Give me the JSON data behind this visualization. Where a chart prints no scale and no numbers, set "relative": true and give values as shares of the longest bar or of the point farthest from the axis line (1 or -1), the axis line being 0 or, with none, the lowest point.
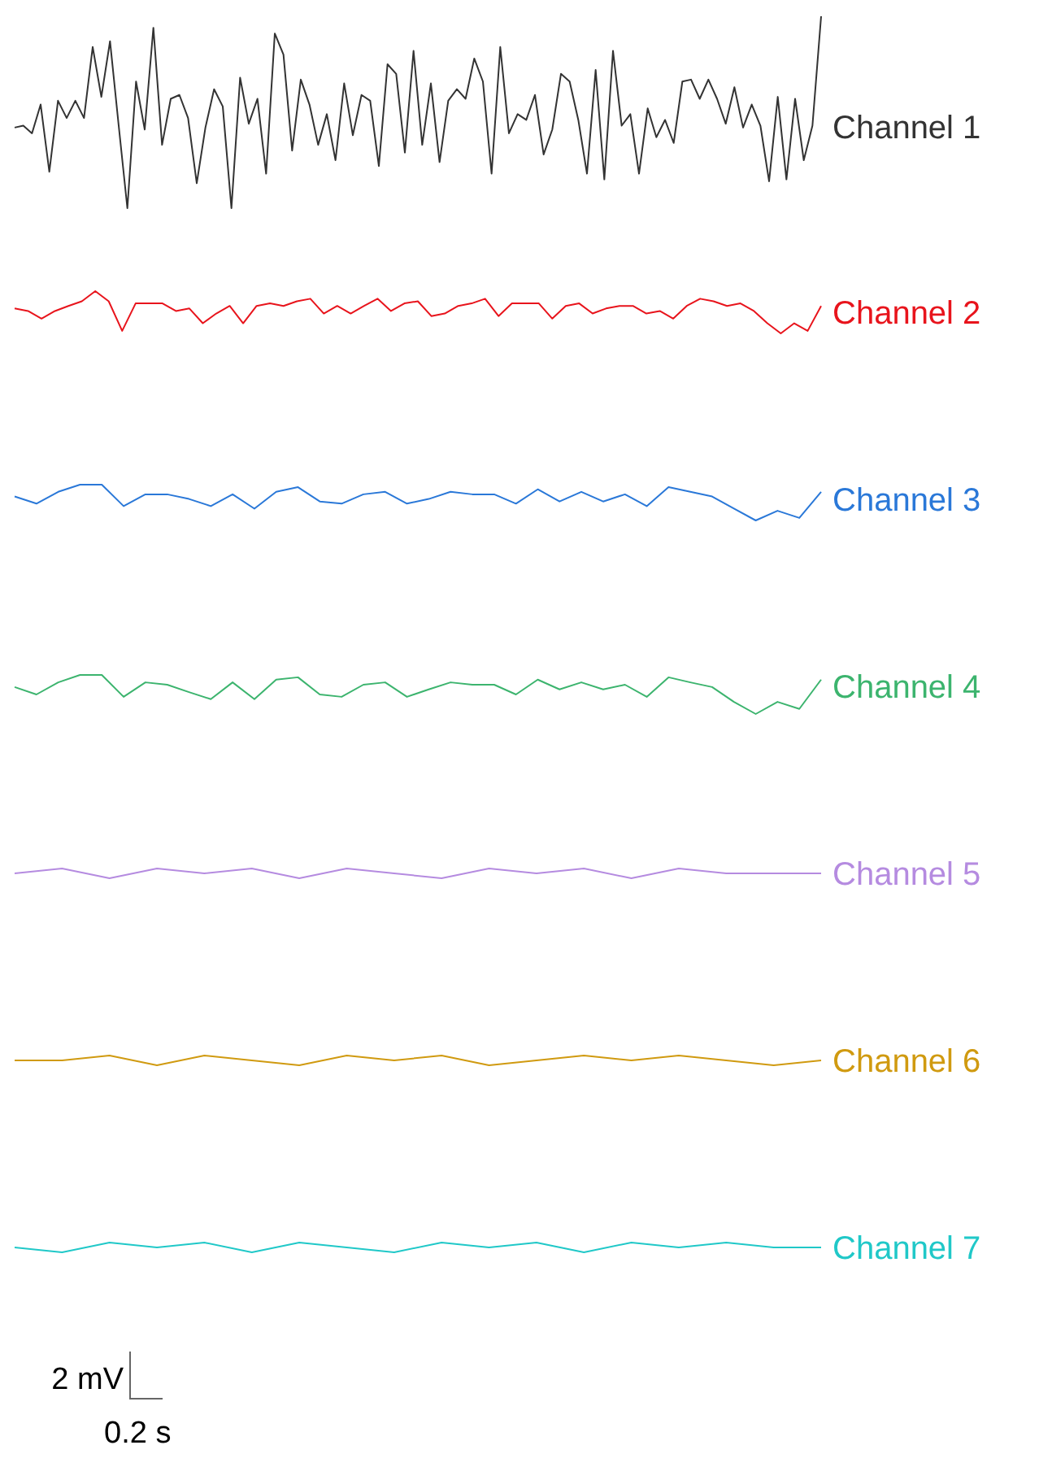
{
  "chart_data": [
    {
      "type": "line",
      "relative": true,
      "categories": [
        null,
        null,
        null,
        null,
        null,
        null,
        null,
        null,
        null,
        null,
        null,
        null,
        null,
        null,
        null,
        null,
        null,
        null,
        null,
        null,
        null,
        null,
        null,
        null,
        null,
        null,
        null,
        null,
        null,
        null,
        null,
        null,
        null,
        null,
        null,
        null,
        null,
        null,
        null,
        null,
        null,
        null,
        null,
        null,
        null,
        null,
        null,
        null,
        null,
        null,
        null,
        null,
        null,
        null,
        null,
        null,
        null,
        null,
        null,
        null,
        null,
        null,
        null,
        null,
        null,
        null,
        null,
        null,
        null,
        null,
        null,
        null,
        null,
        null,
        null,
        null,
        null,
        null,
        null,
        null,
        null,
        null,
        null,
        null,
        null,
        null,
        null,
        null,
        null,
        null,
        null,
        null,
        null,
        null
      ],
      "series": [
        {
          "name": "Channel 1",
          "color": "#333333",
          "values": [
            0.42,
            0.43,
            0.39,
            0.54,
            0.19,
            0.56,
            0.47,
            0.56,
            0.47,
            0.84,
            0.58,
            0.87,
            0.43,
            0,
            0.66,
            0.41,
            0.94,
            0.33,
            0.57,
            0.59,
            0.47,
            0.13,
            0.42,
            0.62,
            0.53,
            0,
            0.68,
            0.44,
            0.57,
            0.18,
            0.91,
            0.8,
            0.3,
            0.67,
            0.54,
            0.33,
            0.49,
            0.25,
            0.65,
            0.38,
            0.59,
            0.56,
            0.22,
            0.75,
            0.7,
            0.29,
            0.82,
            0.33,
            0.65,
            0.24,
            0.56,
            0.62,
            0.57,
            0.78,
            0.66,
            0.18,
            0.84,
            0.39,
            0.49,
            0.46,
            0.59,
            0.28,
            0.41,
            0.7,
            0.66,
            0.46,
            0.18,
            0.72,
            0.15,
            0.82,
            0.43,
            0.49,
            0.18,
            0.52,
            0.37,
            0.46,
            0.34,
            0.66,
            0.67,
            0.57,
            0.67,
            0.57,
            0.44,
            0.63,
            0.42,
            0.54,
            0.43,
            0.14,
            0.58,
            0.15,
            0.57,
            0.25,
            0.43,
            1
          ]
        }
      ]
    },
    {
      "type": "line",
      "relative": true,
      "categories": [
        null,
        null,
        null,
        null,
        null,
        null,
        null,
        null,
        null,
        null,
        null,
        null,
        null,
        null,
        null,
        null,
        null,
        null,
        null,
        null,
        null,
        null,
        null,
        null,
        null,
        null,
        null,
        null,
        null,
        null,
        null,
        null,
        null,
        null,
        null,
        null,
        null,
        null,
        null,
        null,
        null,
        null,
        null,
        null,
        null,
        null,
        null,
        null,
        null,
        null,
        null,
        null,
        null,
        null,
        null,
        null,
        null,
        null,
        null,
        null,
        null
      ],
      "series": [
        {
          "name": "Channel 2",
          "color": "#e8141c",
          "values": [
            0.59,
            0.53,
            0.35,
            0.53,
            0.65,
            0.76,
            1,
            0.76,
            0.06,
            0.71,
            0.71,
            0.71,
            0.53,
            0.59,
            0.24,
            0.47,
            0.65,
            0.24,
            0.65,
            0.71,
            0.65,
            0.76,
            0.82,
            0.47,
            0.65,
            0.47,
            0.65,
            0.82,
            0.53,
            0.71,
            0.76,
            0.41,
            0.47,
            0.65,
            0.71,
            0.82,
            0.41,
            0.71,
            0.71,
            0.71,
            0.35,
            0.65,
            0.71,
            0.47,
            0.59,
            0.65,
            0.65,
            0.47,
            0.53,
            0.35,
            0.65,
            0.82,
            0.76,
            0.65,
            0.71,
            0.53,
            0.24,
            0,
            0.24,
            0.06,
            0.65
          ]
        }
      ]
    },
    {
      "type": "line",
      "relative": true,
      "categories": [
        null,
        null,
        null,
        null,
        null,
        null,
        null,
        null,
        null,
        null,
        null,
        null,
        null,
        null,
        null,
        null,
        null,
        null,
        null,
        null,
        null,
        null,
        null,
        null,
        null,
        null,
        null,
        null,
        null,
        null,
        null,
        null,
        null,
        null,
        null,
        null,
        null,
        null
      ],
      "series": [
        {
          "name": "Channel 3",
          "color": "#2a78d8",
          "values": [
            0.67,
            0.47,
            0.8,
            1,
            1,
            0.4,
            0.73,
            0.73,
            0.6,
            0.4,
            0.73,
            0.33,
            0.8,
            0.93,
            0.53,
            0.47,
            0.73,
            0.8,
            0.47,
            0.6,
            0.8,
            0.73,
            0.73,
            0.47,
            0.87,
            0.53,
            0.8,
            0.53,
            0.73,
            0.4,
            0.93,
            0.8,
            0.67,
            0.33,
            0,
            0.27,
            0.07,
            0.8
          ]
        }
      ]
    },
    {
      "type": "line",
      "relative": true,
      "categories": [
        null,
        null,
        null,
        null,
        null,
        null,
        null,
        null,
        null,
        null,
        null,
        null,
        null,
        null,
        null,
        null,
        null,
        null,
        null,
        null,
        null,
        null,
        null,
        null,
        null,
        null,
        null,
        null,
        null,
        null,
        null,
        null,
        null,
        null,
        null,
        null,
        null,
        null
      ],
      "series": [
        {
          "name": "Channel 4",
          "color": "#3cb46e",
          "values": [
            0.69,
            0.5,
            0.81,
            1,
            1,
            0.44,
            0.81,
            0.75,
            0.56,
            0.38,
            0.81,
            0.38,
            0.88,
            0.94,
            0.5,
            0.44,
            0.75,
            0.81,
            0.44,
            0.63,
            0.81,
            0.75,
            0.75,
            0.5,
            0.88,
            0.63,
            0.81,
            0.63,
            0.75,
            0.44,
            0.94,
            0.81,
            0.69,
            0.31,
            0,
            0.31,
            0.13,
            0.88
          ]
        }
      ]
    },
    {
      "type": "line",
      "relative": true,
      "categories": [
        null,
        null,
        null,
        null,
        null,
        null,
        null,
        null,
        null,
        null,
        null,
        null,
        null,
        null,
        null,
        null,
        null,
        null
      ],
      "series": [
        {
          "name": "Channel 5",
          "color": "#b58be0",
          "values": [
            0.5,
            1,
            0,
            1,
            0.5,
            1,
            0,
            1,
            0.5,
            0,
            1,
            0.5,
            1,
            0,
            1,
            0.5,
            0.5,
            0.5
          ]
        }
      ]
    },
    {
      "type": "line",
      "relative": true,
      "categories": [
        null,
        null,
        null,
        null,
        null,
        null,
        null,
        null,
        null,
        null,
        null,
        null,
        null,
        null,
        null,
        null,
        null,
        null
      ],
      "series": [
        {
          "name": "Channel 6",
          "color": "#d09a10",
          "values": [
            0.5,
            0.5,
            1,
            0,
            1,
            0.5,
            0,
            1,
            0.5,
            1,
            0,
            0.5,
            1,
            0.5,
            1,
            0.5,
            0,
            0.5
          ]
        }
      ]
    },
    {
      "type": "line",
      "relative": true,
      "categories": [
        null,
        null,
        null,
        null,
        null,
        null,
        null,
        null,
        null,
        null,
        null,
        null,
        null,
        null,
        null,
        null,
        null,
        null
      ],
      "series": [
        {
          "name": "Channel 7",
          "color": "#20c8c8",
          "values": [
            0.5,
            0,
            1,
            0.5,
            1,
            0,
            1,
            0.5,
            0,
            1,
            0.5,
            1,
            0,
            1,
            0.5,
            1,
            0.5,
            0.5
          ]
        }
      ],
      "annotations": [
        "2 mV",
        "0.2 s"
      ]
    }
  ]
}
